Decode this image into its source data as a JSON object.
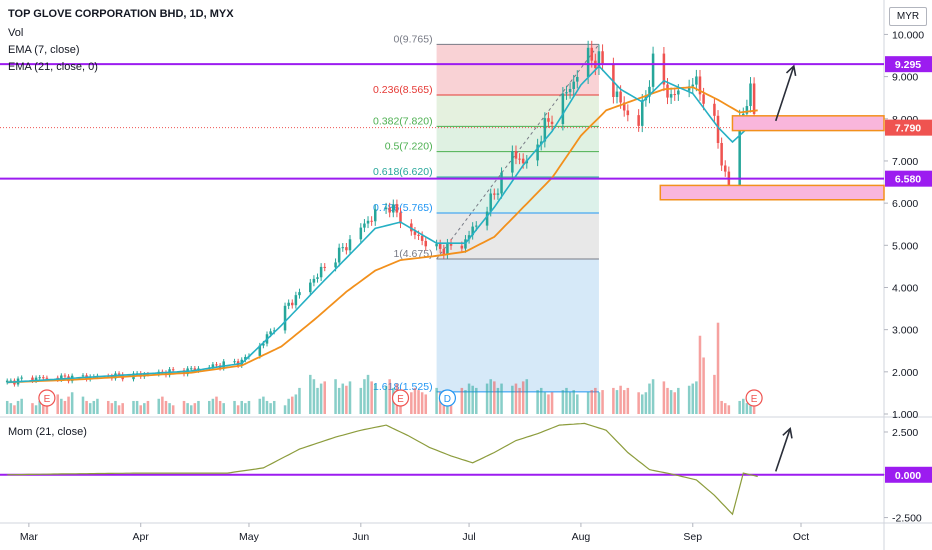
{
  "legend": {
    "title": "TOP GLOVE CORPORATION BHD, 1D, MYX",
    "vol": "Vol",
    "ema7": "EMA (7, close)",
    "ema21": "EMA (21, close, 0)",
    "mom": "Mom (21, close)"
  },
  "currency": "MYR",
  "colors": {
    "up": "#26a69a",
    "down": "#ef5350",
    "ema7": "#26b0c4",
    "ema21": "#f2901c",
    "level": "#9c1cf0",
    "mom": "#8c9c3c",
    "zone_fill": "#f9b6dc",
    "zone_border": "#f2901c"
  },
  "chart_data": [
    {
      "type": "candlestick",
      "title": "TOP GLOVE CORPORATION BHD, 1D, MYX",
      "ylim": [
        1.0,
        10.2
      ],
      "y_ticks": [
        "10.000",
        "9.000",
        "8.000",
        "7.000",
        "6.000",
        "5.000",
        "4.000",
        "3.000",
        "2.000",
        "1.000"
      ],
      "x_ticks": [
        "Mar",
        "Apr",
        "May",
        "Jun",
        "Jul",
        "Aug",
        "Sep",
        "Oct"
      ],
      "x_tick_dates": [
        "2020-03-01",
        "2020-04-01",
        "2020-05-01",
        "2020-06-01",
        "2020-07-01",
        "2020-08-01",
        "2020-09-01",
        "2020-10-01"
      ],
      "x_range": [
        "2020-02-22",
        "2020-10-24"
      ],
      "key_prices": [
        {
          "label": "9.295",
          "value": 9.295,
          "kind": "line"
        },
        {
          "label": "7.790",
          "value": 7.79,
          "kind": "last"
        },
        {
          "label": "6.580",
          "value": 6.58,
          "kind": "line"
        }
      ],
      "fibonacci": {
        "start": "2020-06-22",
        "end": "2020-08-06",
        "levels": [
          {
            "ratio": "0",
            "price": "9.765",
            "value": 9.765
          },
          {
            "ratio": "0.236",
            "price": "8.565",
            "value": 8.565
          },
          {
            "ratio": "0.382",
            "price": "7.820",
            "value": 7.82
          },
          {
            "ratio": "0.5",
            "price": "7.220",
            "value": 7.22
          },
          {
            "ratio": "0.618",
            "price": "6.620",
            "value": 6.62
          },
          {
            "ratio": "0.786",
            "price": "5.765",
            "value": 5.765
          },
          {
            "ratio": "1",
            "price": "4.675",
            "value": 4.675
          },
          {
            "ratio": "1.618",
            "price": "1.525",
            "value": 1.525
          }
        ]
      },
      "zones": [
        {
          "from": "2020-09-12",
          "low": 7.72,
          "high": 8.07
        },
        {
          "from": "2020-08-23",
          "low": 6.08,
          "high": 6.42
        }
      ],
      "event_markers": [
        {
          "label": "E",
          "date": "2020-03-06"
        },
        {
          "label": "E",
          "date": "2020-06-12"
        },
        {
          "label": "D",
          "date": "2020-06-25"
        },
        {
          "label": "E",
          "date": "2020-09-18"
        }
      ],
      "price_path": [
        [
          "2020-02-24",
          1.75
        ],
        [
          "2020-03-01",
          1.85
        ],
        [
          "2020-03-15",
          1.87
        ],
        [
          "2020-04-01",
          1.93
        ],
        [
          "2020-04-15",
          2.05
        ],
        [
          "2020-04-29",
          2.25
        ],
        [
          "2020-05-05",
          2.7
        ],
        [
          "2020-05-12",
          3.6
        ],
        [
          "2020-05-20",
          4.3
        ],
        [
          "2020-05-28",
          5.0
        ],
        [
          "2020-06-03",
          5.6
        ],
        [
          "2020-06-09",
          5.95
        ],
        [
          "2020-06-15",
          5.3
        ],
        [
          "2020-06-22",
          4.9
        ],
        [
          "2020-06-29",
          5.0
        ],
        [
          "2020-07-03",
          5.5
        ],
        [
          "2020-07-08",
          6.2
        ],
        [
          "2020-07-13",
          7.2
        ],
        [
          "2020-07-17",
          6.9
        ],
        [
          "2020-07-22",
          7.8
        ],
        [
          "2020-07-28",
          8.6
        ],
        [
          "2020-08-03",
          9.5
        ],
        [
          "2020-08-07",
          9.3
        ],
        [
          "2020-08-10",
          8.7
        ],
        [
          "2020-08-13",
          8.2
        ],
        [
          "2020-08-17",
          7.9
        ],
        [
          "2020-08-21",
          9.3
        ],
        [
          "2020-08-26",
          8.5
        ],
        [
          "2020-09-01",
          8.9
        ],
        [
          "2020-09-06",
          8.3
        ],
        [
          "2020-09-09",
          7.0
        ],
        [
          "2020-09-11",
          6.4
        ],
        [
          "2020-09-14",
          8.0
        ],
        [
          "2020-09-17",
          8.6
        ],
        [
          "2020-09-19",
          7.79
        ]
      ],
      "ema7_path": [
        [
          "2020-02-24",
          1.75
        ],
        [
          "2020-03-15",
          1.86
        ],
        [
          "2020-04-15",
          2.02
        ],
        [
          "2020-04-29",
          2.2
        ],
        [
          "2020-05-10",
          3.1
        ],
        [
          "2020-05-20",
          4.0
        ],
        [
          "2020-05-28",
          4.7
        ],
        [
          "2020-06-05",
          5.4
        ],
        [
          "2020-06-12",
          5.55
        ],
        [
          "2020-06-22",
          5.05
        ],
        [
          "2020-06-30",
          5.05
        ],
        [
          "2020-07-08",
          5.9
        ],
        [
          "2020-07-16",
          6.9
        ],
        [
          "2020-07-24",
          7.7
        ],
        [
          "2020-08-01",
          8.8
        ],
        [
          "2020-08-06",
          9.25
        ],
        [
          "2020-08-12",
          8.7
        ],
        [
          "2020-08-18",
          8.4
        ],
        [
          "2020-08-24",
          8.9
        ],
        [
          "2020-09-01",
          8.6
        ],
        [
          "2020-09-08",
          7.8
        ],
        [
          "2020-09-12",
          7.45
        ],
        [
          "2020-09-19",
          8.0
        ]
      ],
      "ema21_path": [
        [
          "2020-02-24",
          1.75
        ],
        [
          "2020-03-15",
          1.82
        ],
        [
          "2020-04-15",
          1.98
        ],
        [
          "2020-04-29",
          2.15
        ],
        [
          "2020-05-10",
          2.6
        ],
        [
          "2020-05-20",
          3.3
        ],
        [
          "2020-05-28",
          3.9
        ],
        [
          "2020-06-05",
          4.4
        ],
        [
          "2020-06-12",
          4.65
        ],
        [
          "2020-06-22",
          4.75
        ],
        [
          "2020-06-30",
          4.85
        ],
        [
          "2020-07-08",
          5.2
        ],
        [
          "2020-07-16",
          5.9
        ],
        [
          "2020-07-24",
          6.6
        ],
        [
          "2020-08-01",
          7.6
        ],
        [
          "2020-08-08",
          8.2
        ],
        [
          "2020-08-16",
          8.45
        ],
        [
          "2020-08-24",
          8.7
        ],
        [
          "2020-09-01",
          8.75
        ],
        [
          "2020-09-08",
          8.45
        ],
        [
          "2020-09-14",
          8.15
        ],
        [
          "2020-09-19",
          8.2
        ]
      ],
      "arrows": [
        {
          "from_date": "2020-09-24",
          "from_value": 7.95,
          "to_date": "2020-09-29",
          "to_value": 9.25
        }
      ]
    },
    {
      "type": "bar",
      "title": "Vol",
      "series": [
        {
          "name": "Vol",
          "values": [
            0.3,
            0.25,
            0.2,
            0.3,
            0.35,
            0.25,
            0.2,
            0.3,
            0.25,
            0.4,
            0.45,
            0.35,
            0.3,
            0.4,
            0.5,
            0.4,
            0.3,
            0.25,
            0.3,
            0.35,
            0.3,
            0.25,
            0.3,
            0.2,
            0.25,
            0.3,
            0.3,
            0.2,
            0.25,
            0.3,
            0.35,
            0.4,
            0.3,
            0.25,
            0.2,
            0.3,
            0.25,
            0.2,
            0.25,
            0.3,
            0.3,
            0.35,
            0.4,
            0.3,
            0.25,
            0.3,
            0.2,
            0.3,
            0.25,
            0.3,
            0.35,
            0.4,
            0.3,
            0.25,
            0.3,
            0.2,
            0.35,
            0.4,
            0.45,
            0.6,
            0.9,
            0.8,
            0.6,
            0.7,
            0.75,
            0.8,
            0.6,
            0.7,
            0.65,
            0.75,
            0.6,
            0.8,
            0.9,
            0.75,
            0.7,
            0.65,
            0.8,
            0.6,
            0.7,
            0.55,
            0.5,
            0.6,
            0.55,
            0.5,
            0.45,
            0.6,
            0.5,
            0.55,
            0.4,
            0.5,
            0.6,
            0.55,
            0.7,
            0.65,
            0.6,
            0.7,
            0.8,
            0.75,
            0.6,
            0.7,
            0.65,
            0.7,
            0.6,
            0.75,
            0.8,
            0.55,
            0.6,
            0.5,
            0.45,
            0.5,
            0.55,
            0.6,
            0.5,
            0.55,
            0.45,
            0.5,
            0.55,
            0.6,
            0.5,
            0.55,
            0.6,
            0.55,
            0.65,
            0.55,
            0.6,
            0.5,
            0.45,
            0.5,
            0.7,
            0.8,
            0.75,
            0.6,
            0.55,
            0.5,
            0.6,
            0.65,
            0.7,
            0.75,
            1.8,
            1.3,
            0.9,
            2.1
          ]
        }
      ],
      "up_down_note": "bar colour follows candle direction"
    },
    {
      "type": "line",
      "title": "Mom (21, close)",
      "ylim": [
        -2.7,
        3.2
      ],
      "y_ticks": [
        "2.500",
        "0.000",
        "-2.500"
      ],
      "key_prices": [
        {
          "label": "0.000",
          "value": 0.0
        }
      ],
      "series": [
        {
          "name": "Mom (21, close)",
          "points": [
            [
              "2020-02-24",
              0.0
            ],
            [
              "2020-03-10",
              0.05
            ],
            [
              "2020-04-01",
              0.1
            ],
            [
              "2020-04-25",
              0.1
            ],
            [
              "2020-05-05",
              0.4
            ],
            [
              "2020-05-15",
              1.5
            ],
            [
              "2020-05-25",
              2.2
            ],
            [
              "2020-06-01",
              2.6
            ],
            [
              "2020-06-08",
              2.9
            ],
            [
              "2020-06-14",
              2.3
            ],
            [
              "2020-06-20",
              1.6
            ],
            [
              "2020-06-26",
              1.1
            ],
            [
              "2020-07-02",
              0.7
            ],
            [
              "2020-07-08",
              1.3
            ],
            [
              "2020-07-14",
              2.0
            ],
            [
              "2020-07-20",
              2.4
            ],
            [
              "2020-07-26",
              2.9
            ],
            [
              "2020-08-02",
              3.0
            ],
            [
              "2020-08-08",
              2.6
            ],
            [
              "2020-08-14",
              1.3
            ],
            [
              "2020-08-20",
              0.3
            ],
            [
              "2020-08-26",
              0.05
            ],
            [
              "2020-09-02",
              -0.3
            ],
            [
              "2020-09-07",
              -1.2
            ],
            [
              "2020-09-12",
              -2.3
            ],
            [
              "2020-09-15",
              0.1
            ],
            [
              "2020-09-19",
              -0.1
            ]
          ]
        }
      ],
      "arrows": [
        {
          "from_date": "2020-09-24",
          "from_value": 0.2,
          "to_date": "2020-09-28",
          "to_value": 2.7
        }
      ]
    }
  ]
}
